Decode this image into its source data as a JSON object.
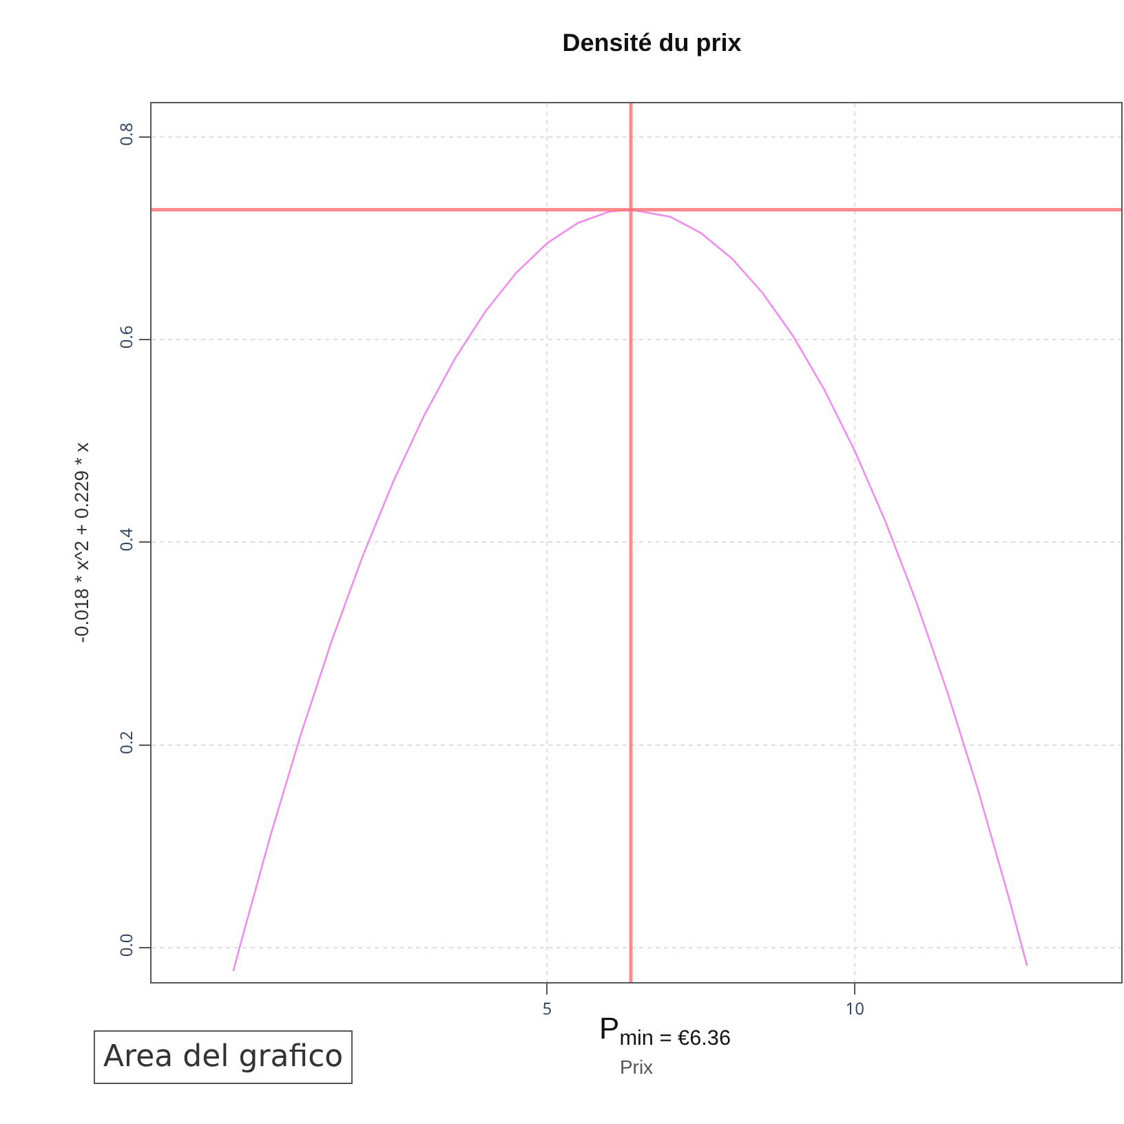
{
  "chart_data": {
    "type": "line",
    "title": "Densité du prix",
    "xlabel": "Prix",
    "ylabel": "-0.018 * x^2 + 0.229 * x",
    "x": [
      -0.1,
      0,
      0.5,
      1,
      1.5,
      2,
      2.5,
      3,
      3.5,
      4,
      4.5,
      5,
      5.5,
      6,
      6.36,
      7,
      7.5,
      8,
      8.5,
      9,
      9.5,
      10,
      10.5,
      11,
      11.5,
      12,
      12.5,
      12.72,
      12.8
    ],
    "series": [
      {
        "color": "#f08cf0",
        "values": [
          -0.023,
          0,
          0.11,
          0.211,
          0.303,
          0.386,
          0.46,
          0.525,
          0.581,
          0.628,
          0.666,
          0.695,
          0.715,
          0.726,
          0.728,
          0.721,
          0.705,
          0.68,
          0.646,
          0.603,
          0.551,
          0.49,
          0.42,
          0.341,
          0.253,
          0.156,
          0.05,
          0.0,
          -0.018
        ]
      }
    ],
    "xlim": [
      -1.43,
      14.33
    ],
    "ylim": [
      -0.034,
      0.833
    ],
    "xticks": [
      5,
      10
    ],
    "yticks": [
      {
        "value": 0,
        "label": "0.0"
      },
      {
        "value": 0.2,
        "label": "0.2"
      },
      {
        "value": 0.4,
        "label": "0.4"
      },
      {
        "value": 0.6,
        "label": "0.6"
      },
      {
        "value": 0.8,
        "label": "0.8"
      }
    ],
    "ref_lines": [
      {
        "axis": "x",
        "value": 6.36,
        "color": "#ff7070"
      },
      {
        "axis": "y",
        "value": 0.728,
        "color": "#ff7070"
      }
    ],
    "annotations": [
      "P$_{min = €6.36}$",
      "Area del grafico"
    ],
    "grid": true,
    "marker": "none",
    "line_style": "solid"
  }
}
